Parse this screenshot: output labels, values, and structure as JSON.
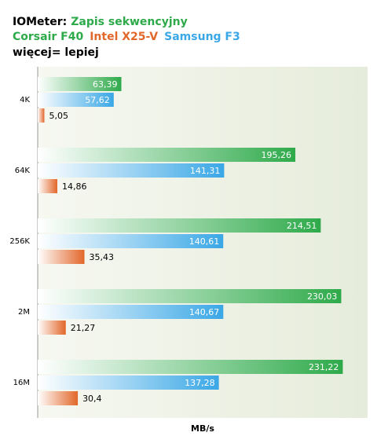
{
  "chart_data": {
    "type": "bar",
    "orientation": "horizontal",
    "title": "IOMeter:",
    "subtitle": "Zapis sekwencyjny",
    "note": "więcej= lepiej",
    "x_label": "MB/s",
    "categories": [
      "4K",
      "64K",
      "256K",
      "2M",
      "16M"
    ],
    "xlim": [
      0,
      250
    ],
    "series": [
      {
        "name": "Corsair F40",
        "color": "#2eaa4a",
        "values": [
          63.39,
          195.26,
          214.51,
          230.03,
          231.22
        ],
        "value_labels": [
          "63,39",
          "195,26",
          "214,51",
          "230,03",
          "231,22"
        ]
      },
      {
        "name": "Intel X25-V",
        "color": "#e2672a",
        "values": [
          5.05,
          14.86,
          35.43,
          21.27,
          30.4
        ],
        "value_labels": [
          "5,05",
          "14,86",
          "35,43",
          "21,27",
          "30,4"
        ]
      },
      {
        "name": "Samsung F3",
        "color": "#3aa7e6",
        "values": [
          57.62,
          141.31,
          140.61,
          140.67,
          137.28
        ],
        "value_labels": [
          "57,62",
          "141,31",
          "140,61",
          "140,67",
          "137,28"
        ]
      }
    ]
  }
}
